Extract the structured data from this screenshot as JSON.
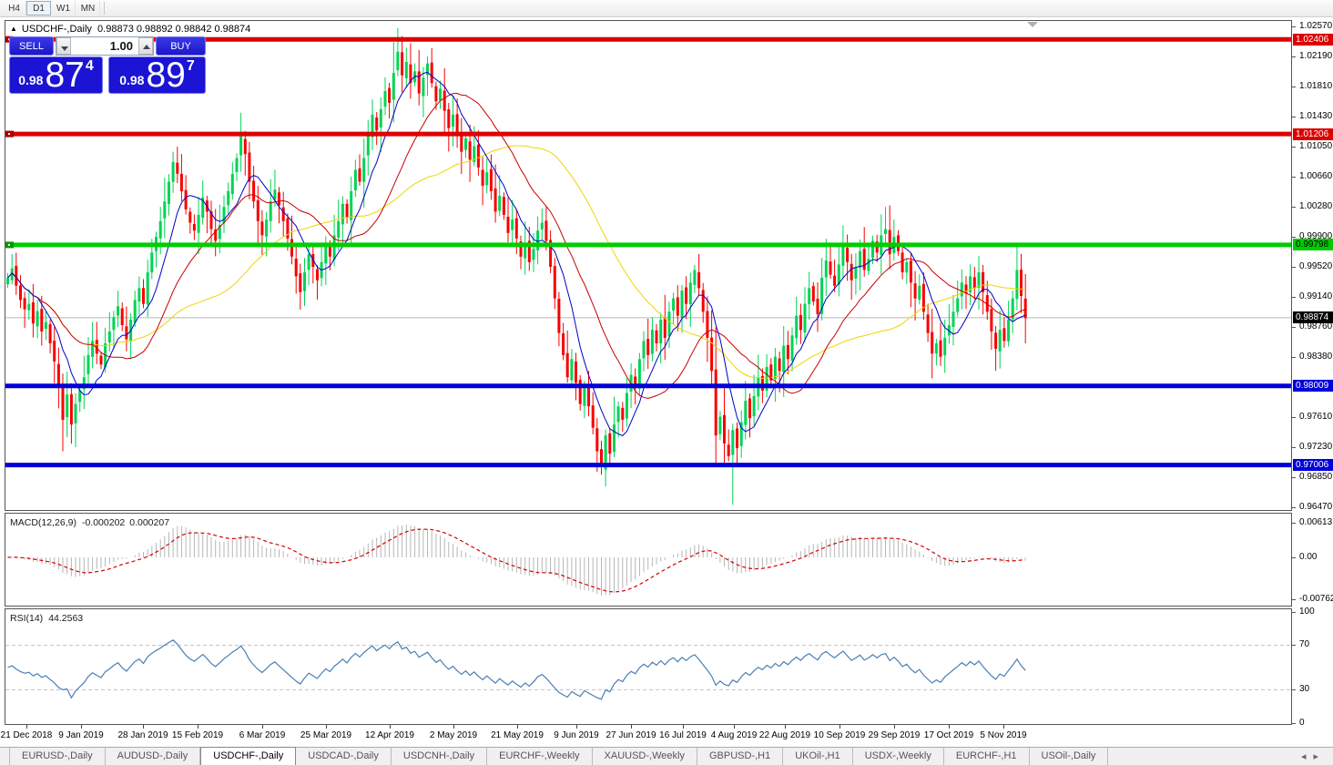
{
  "window": {
    "toolbar": {
      "timeframes": [
        "H4",
        "D1",
        "W1",
        "MN"
      ],
      "active": "D1"
    }
  },
  "chart": {
    "title": {
      "collapse_glyph": "▲",
      "symbol": "USDCHF-,Daily",
      "ohlc": "0.98873 0.98892 0.98842 0.98874"
    },
    "trade_panel": {
      "sell_label": "SELL",
      "buy_label": "BUY",
      "volume": "1.00",
      "sell_price": {
        "small": "0.98",
        "big": "87",
        "sup": "4"
      },
      "buy_price": {
        "small": "0.98",
        "big": "89",
        "sup": "7"
      }
    },
    "colors": {
      "bull": "#00D455",
      "bear": "#F80000",
      "ma_fast": "#0000C8",
      "ma_mid": "#C80000",
      "ma_slow": "#EED500",
      "hline_red": "#DD0000",
      "hline_green": "#00CC00",
      "hline_blue": "#0000D8",
      "current_line": "#B8B8B8",
      "macd_hist": "#B6B6B6",
      "macd_signal": "#D40000",
      "rsi_line": "#4A7EB5"
    }
  },
  "chart_data": {
    "type": "candlestick",
    "symbol": "USDCHF-",
    "timeframe": "Daily",
    "y_axis_ticks": [
      "1.02570",
      "1.02190",
      "1.01810",
      "1.01430",
      "1.01050",
      "1.00660",
      "1.00280",
      "0.99900",
      "0.99520",
      "0.99140",
      "0.98760",
      "0.98380",
      "0.97610",
      "0.97230",
      "0.96850",
      "0.96470"
    ],
    "y_axis_top_value": 1.0257,
    "y_axis_bottom_value": 0.9647,
    "open_first": 0.993,
    "closes": [
      0.9938,
      0.995,
      0.9928,
      0.991,
      0.9898,
      0.9905,
      0.988,
      0.9896,
      0.987,
      0.9882,
      0.9855,
      0.9832,
      0.98,
      0.9758,
      0.979,
      0.9752,
      0.9778,
      0.9795,
      0.9812,
      0.984,
      0.9858,
      0.9842,
      0.9828,
      0.9855,
      0.987,
      0.9888,
      0.9902,
      0.9878,
      0.986,
      0.9885,
      0.991,
      0.9925,
      0.9905,
      0.9945,
      0.997,
      0.999,
      1.001,
      1.0035,
      1.006,
      1.0085,
      1.007,
      1.0048,
      1.0025,
      1.0008,
      0.9998,
      1.0018,
      1.004,
      1.0022,
      1.0,
      0.9985,
      1.0005,
      1.0028,
      1.0048,
      1.007,
      1.009,
      1.0118,
      1.0095,
      1.006,
      1.0035,
      1.001,
      0.9992,
      1.0012,
      1.0035,
      1.005,
      1.003,
      1.001,
      0.9988,
      0.9965,
      0.994,
      0.992,
      0.9945,
      0.9968,
      0.9952,
      0.9935,
      0.9958,
      0.998,
      0.9965,
      0.9992,
      1.001,
      1.0032,
      1.0015,
      1.0048,
      1.0075,
      1.006,
      1.009,
      1.0118,
      1.0145,
      1.0125,
      1.0152,
      1.0175,
      1.016,
      1.0198,
      1.0225,
      1.0195,
      1.0212,
      1.0185,
      1.02,
      1.0172,
      1.0192,
      1.021,
      1.0185,
      1.0162,
      1.0178,
      1.015,
      1.0128,
      1.0145,
      1.012,
      1.0098,
      1.0115,
      1.0088,
      1.0105,
      1.0078,
      1.0055,
      1.0072,
      1.0048,
      1.0022,
      1.0042,
      1.0018,
      0.9995,
      1.0012,
      0.9988,
      0.9965,
      0.9982,
      0.9958,
      0.9975,
      0.9998,
      1.0008,
      0.9985,
      0.9952,
      0.9912,
      0.9868,
      0.984,
      0.9812,
      0.9835,
      0.9805,
      0.9778,
      0.9802,
      0.9775,
      0.9748,
      0.9718,
      0.9698,
      0.9738,
      0.9715,
      0.9752,
      0.9775,
      0.9758,
      0.9792,
      0.9815,
      0.9798,
      0.9835,
      0.9858,
      0.984,
      0.9872,
      0.9855,
      0.9885,
      0.9862,
      0.9895,
      0.9912,
      0.989,
      0.9922,
      0.9905,
      0.9932,
      0.9948,
      0.9925,
      0.9895,
      0.9862,
      0.982,
      0.9738,
      0.9762,
      0.9728,
      0.9712,
      0.9745,
      0.9722,
      0.9755,
      0.9782,
      0.976,
      0.9788,
      0.9812,
      0.9795,
      0.9825,
      0.9808,
      0.9838,
      0.982,
      0.9852,
      0.9835,
      0.9865,
      0.989,
      0.9872,
      0.9905,
      0.9925,
      0.9908,
      0.9892,
      0.9938,
      0.996,
      0.9942,
      0.9928,
      0.9955,
      0.998,
      0.9958,
      0.9935,
      0.9952,
      0.9972,
      0.9948,
      0.9962,
      0.9985,
      0.997,
      0.9992,
      1.0,
      0.9968,
      0.999,
      0.9972,
      0.9945,
      0.9958,
      0.9932,
      0.9912,
      0.9928,
      0.9895,
      0.9868,
      0.9842,
      0.9855,
      0.9838,
      0.9862,
      0.9878,
      0.9895,
      0.9912,
      0.9932,
      0.9918,
      0.994,
      0.9925,
      0.9945,
      0.992,
      0.9895,
      0.987,
      0.9848,
      0.9872,
      0.9858,
      0.9885,
      0.9912,
      0.9948,
      0.9915,
      0.9887
    ],
    "wick_highs": {
      "39": 1.0098,
      "55": 1.0126,
      "91": 1.0237,
      "92": 1.023,
      "197": 0.999,
      "206": 1.0008,
      "207": 1.0028,
      "209": 1.0012,
      "238": 0.9978
    },
    "wick_lows": {
      "13": 0.9718,
      "69": 0.9915,
      "140": 0.969,
      "141": 0.9692,
      "167": 0.97,
      "171": 0.965,
      "233": 0.9838,
      "240": 0.9855
    },
    "ma_periods": {
      "fast": 8,
      "mid": 21,
      "slow": 45
    },
    "horizontal_lines": [
      {
        "price": 1.02406,
        "label": "1.02406",
        "color": "red"
      },
      {
        "price": 1.01206,
        "label": "1.01206",
        "color": "red"
      },
      {
        "price": 0.99798,
        "label": "0.99798",
        "color": "green"
      },
      {
        "price": 0.98009,
        "label": "0.98009",
        "color": "blue"
      },
      {
        "price": 0.97006,
        "label": "0.97006",
        "color": "blue"
      }
    ],
    "current_price": {
      "value": 0.98874,
      "label": "0.98874"
    },
    "x_axis_dates": [
      "21 Dec 2018",
      "9 Jan 2019",
      "28 Jan 2019",
      "15 Feb 2019",
      "6 Mar 2019",
      "25 Mar 2019",
      "12 Apr 2019",
      "2 May 2019",
      "21 May 2019",
      "9 Jun 2019",
      "27 Jun 2019",
      "16 Jul 2019",
      "4 Aug 2019",
      "22 Aug 2019",
      "10 Sep 2019",
      "29 Sep 2019",
      "17 Oct 2019",
      "5 Nov 2019"
    ],
    "macd": {
      "name": "MACD(12,26,9)",
      "value_main": "-0.000202",
      "value_signal": "0.000207",
      "params": [
        12,
        26,
        9
      ],
      "axis_ticks": [
        "0.00613",
        "0.00",
        "-0.00762"
      ],
      "axis_values": [
        0.00613,
        0,
        -0.00762
      ]
    },
    "rsi": {
      "name": "RSI(14)",
      "value": "44.2563",
      "period": 14,
      "levels": [
        70,
        30
      ],
      "axis_ticks": [
        "100",
        "70",
        "30",
        "0"
      ]
    }
  },
  "tabs": {
    "items": [
      "EURUSD-,Daily",
      "AUDUSD-,Daily",
      "USDCHF-,Daily",
      "USDCAD-,Daily",
      "USDCNH-,Daily",
      "EURCHF-,Weekly",
      "XAUUSD-,Weekly",
      "GBPUSD-,H1",
      "UKOil-,H1",
      "USDX-,Weekly",
      "EURCHF-,H1",
      "USOil-,Daily"
    ],
    "active_index": 2,
    "scroll_left_glyph": "◂",
    "scroll_right_glyph": "▸"
  }
}
